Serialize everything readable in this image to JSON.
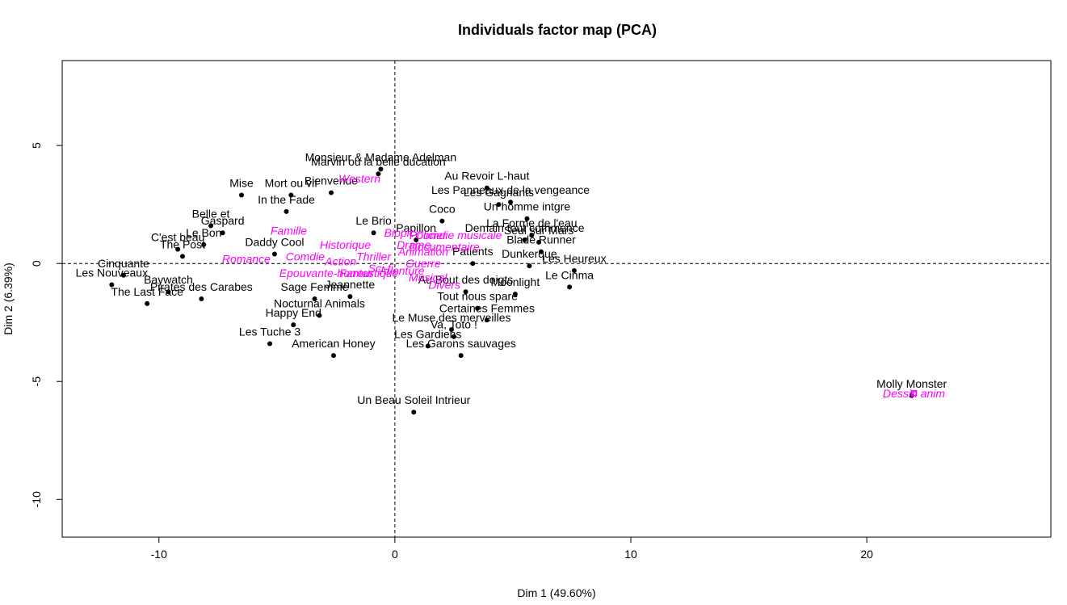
{
  "chart_data": {
    "type": "scatter",
    "title": "Individuals factor map (PCA)",
    "xlabel": "Dim 1 (49.60%)",
    "ylabel": "Dim 2 (6.39%)",
    "xlim": [
      -14.1,
      27.8
    ],
    "ylim": [
      -11.6,
      8.6
    ],
    "xticks": [
      -10,
      0,
      10,
      20
    ],
    "yticks": [
      -10,
      -5,
      0,
      5
    ],
    "grid": false,
    "reference_lines": {
      "x": 0,
      "y": 0,
      "style": "dashed"
    },
    "colors": {
      "individuals": "#000000",
      "supplementary": "#ff00ff"
    },
    "individuals": [
      {
        "label": "Monsieur & Madame Adelman",
        "x": -0.6,
        "y": 4.0
      },
      {
        "label": "Marvin ou la belle ducation",
        "x": -0.7,
        "y": 3.8
      },
      {
        "label": "Au Revoir L-haut",
        "x": 3.9,
        "y": 3.2
      },
      {
        "label": "Les Panneaux de la vengeance",
        "x": 4.9,
        "y": 2.6
      },
      {
        "label": "Bienvenue",
        "x": -2.7,
        "y": 3.0
      },
      {
        "label": "Mise",
        "x": -6.5,
        "y": 2.9
      },
      {
        "label": "In the Fade",
        "x": -4.6,
        "y": 2.2
      },
      {
        "label": "Un homme intgre",
        "x": 5.6,
        "y": 1.9
      },
      {
        "label": "Belle et",
        "x": -7.8,
        "y": 1.6
      },
      {
        "label": "Gaspard",
        "x": -7.3,
        "y": 1.3
      },
      {
        "label": "C'est beau",
        "x": -9.2,
        "y": 0.6
      },
      {
        "label": "The Post",
        "x": -9.0,
        "y": 0.3
      },
      {
        "label": "Le Bon",
        "x": -8.1,
        "y": 0.8
      },
      {
        "label": "Cinquante",
        "x": -11.5,
        "y": -0.5
      },
      {
        "label": "Les Nouveaux",
        "x": -12.0,
        "y": -0.9
      },
      {
        "label": "The Last Face",
        "x": -10.5,
        "y": -1.7
      },
      {
        "label": "Baywatch",
        "x": -9.6,
        "y": -1.2
      },
      {
        "label": "Pirates des Carabes",
        "x": -8.2,
        "y": -1.5
      },
      {
        "label": "Happy End",
        "x": -4.3,
        "y": -2.6
      },
      {
        "label": "Les Tuche 3",
        "x": -5.3,
        "y": -3.4
      },
      {
        "label": "American Honey",
        "x": -2.6,
        "y": -3.9
      },
      {
        "label": "Nocturnal Animals",
        "x": -3.2,
        "y": -2.2
      },
      {
        "label": "Certaines Femmes",
        "x": 3.9,
        "y": -2.4
      },
      {
        "label": "Le Muse des merveilles",
        "x": 2.4,
        "y": -2.8
      },
      {
        "label": "Va, Toto !",
        "x": 2.5,
        "y": -3.1
      },
      {
        "label": "Les Gardiens",
        "x": 1.4,
        "y": -3.5
      },
      {
        "label": "Les Garons sauvages",
        "x": 2.8,
        "y": -3.9
      },
      {
        "label": "Un Beau Soleil Intrieur",
        "x": 0.8,
        "y": -6.3
      },
      {
        "label": "Molly Monster",
        "x": 21.9,
        "y": -5.6
      },
      {
        "label": "La Forme de l'eau",
        "x": 5.8,
        "y": 1.2
      },
      {
        "label": "Seul sur Mars",
        "x": 6.1,
        "y": 0.9
      },
      {
        "label": "Les Heureux",
        "x": 7.6,
        "y": -0.3
      },
      {
        "label": "Le Cinma",
        "x": 7.4,
        "y": -1.0
      },
      {
        "label": "Blade Runner",
        "x": 6.2,
        "y": 0.5
      },
      {
        "label": "Dunkerque",
        "x": 5.7,
        "y": -0.1
      },
      {
        "label": "Tout nous spare",
        "x": 3.5,
        "y": -1.9
      },
      {
        "label": "Jeannette",
        "x": -1.9,
        "y": -1.4
      },
      {
        "label": "Coco",
        "x": 2.0,
        "y": 1.8
      },
      {
        "label": "Sage Femme",
        "x": -3.4,
        "y": -1.5
      },
      {
        "label": "Les Gagnants",
        "x": 4.4,
        "y": 2.5
      },
      {
        "label": "Mort ou vif",
        "x": -4.4,
        "y": 2.9
      },
      {
        "label": "Moonlight",
        "x": 5.1,
        "y": -1.3
      },
      {
        "label": "Au Bout des doigts",
        "x": 3.0,
        "y": -1.2
      },
      {
        "label": "Le Brio",
        "x": -0.9,
        "y": 1.3
      },
      {
        "label": "Patients",
        "x": 3.3,
        "y": 0.0
      },
      {
        "label": "Papillon",
        "x": 0.9,
        "y": 1.0
      },
      {
        "label": "Daddy Cool",
        "x": -5.1,
        "y": 0.4
      },
      {
        "label": "Demain tout commence",
        "x": 5.5,
        "y": 1.0
      }
    ],
    "supplementary": [
      {
        "label": "Famille",
        "x": -4.5,
        "y": 1.4
      },
      {
        "label": "Romance",
        "x": -6.3,
        "y": 0.2
      },
      {
        "label": "Comdie",
        "x": -3.8,
        "y": 0.3
      },
      {
        "label": "Action",
        "x": -2.3,
        "y": 0.1
      },
      {
        "label": "Historique",
        "x": -2.1,
        "y": 0.8
      },
      {
        "label": "Biopic",
        "x": 0.2,
        "y": 1.3
      },
      {
        "label": "Policier",
        "x": 1.4,
        "y": 1.2
      },
      {
        "label": "Comdie musicale",
        "x": 2.7,
        "y": 1.2
      },
      {
        "label": "Drame",
        "x": 0.8,
        "y": 0.8
      },
      {
        "label": "Documentaire",
        "x": 2.1,
        "y": 0.7
      },
      {
        "label": "Animation",
        "x": 1.2,
        "y": 0.5
      },
      {
        "label": "Guerre",
        "x": 1.2,
        "y": 0.0
      },
      {
        "label": "Epouvante-horreur",
        "x": -2.9,
        "y": -0.4
      },
      {
        "label": "Fantastique",
        "x": -1.1,
        "y": -0.4
      },
      {
        "label": "Aventure",
        "x": 0.3,
        "y": -0.3
      },
      {
        "label": "Musical",
        "x": 1.4,
        "y": -0.6
      },
      {
        "label": "Divers",
        "x": 2.1,
        "y": -0.9
      },
      {
        "label": "Western",
        "x": -1.5,
        "y": 3.6
      },
      {
        "label": "Thriller",
        "x": -0.9,
        "y": 0.3
      },
      {
        "label": "Sci-fi",
        "x": -0.6,
        "y": -0.2
      },
      {
        "label": "Dessin anim",
        "x": 22.0,
        "y": -5.5
      }
    ]
  }
}
